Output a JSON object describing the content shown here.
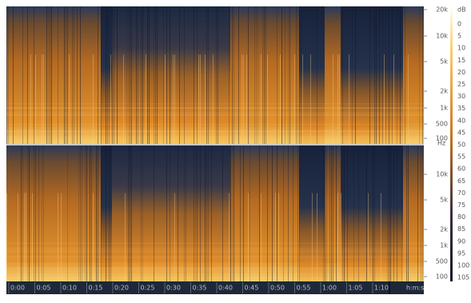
{
  "channels": [
    {
      "freq_labels": [
        "20k",
        "10k",
        "5k",
        "2k",
        "1k",
        "500",
        "100"
      ],
      "unit": "Hz"
    },
    {
      "freq_labels": [
        "10k",
        "5k",
        "2k",
        "1k",
        "500",
        "100"
      ]
    }
  ],
  "db_scale": {
    "unit": "dB",
    "labels": [
      "0",
      "5",
      "10",
      "15",
      "20",
      "25",
      "30",
      "35",
      "40",
      "45",
      "50",
      "55",
      "60",
      "65",
      "70",
      "75",
      "80",
      "85",
      "90",
      "95",
      "100",
      "105"
    ]
  },
  "time_axis": {
    "labels": [
      "0:00",
      "0:05",
      "0:10",
      "0:15",
      "0:20",
      "0:25",
      "0:30",
      "0:35",
      "0:40",
      "0:45",
      "0:50",
      "0:55",
      "1:00",
      "1:05",
      "1:10"
    ],
    "unit": "h:m:s"
  }
}
